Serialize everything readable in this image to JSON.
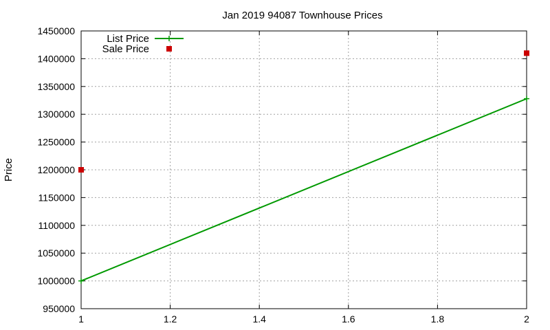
{
  "chart_data": {
    "type": "line",
    "title": "Jan 2019 94087 Townhouse Prices",
    "xlabel": "",
    "ylabel": "Price",
    "xlim": [
      1,
      2
    ],
    "ylim": [
      950000,
      1450000
    ],
    "xticks": [
      "1",
      "1.2",
      "1.4",
      "1.6",
      "1.8",
      "2"
    ],
    "yticks": [
      "950000",
      "1000000",
      "1050000",
      "1100000",
      "1150000",
      "1200000",
      "1250000",
      "1300000",
      "1350000",
      "1400000",
      "1450000"
    ],
    "grid": true,
    "legend_position": "top-left",
    "series": [
      {
        "name": "List Price",
        "style": "line+points",
        "color": "#009900",
        "points": [
          [
            1,
            1000000
          ],
          [
            2,
            1328000
          ]
        ]
      },
      {
        "name": "Sale Price",
        "style": "points",
        "color": "#cc0000",
        "points": [
          [
            1,
            1200000
          ],
          [
            2,
            1410000
          ]
        ]
      }
    ]
  }
}
